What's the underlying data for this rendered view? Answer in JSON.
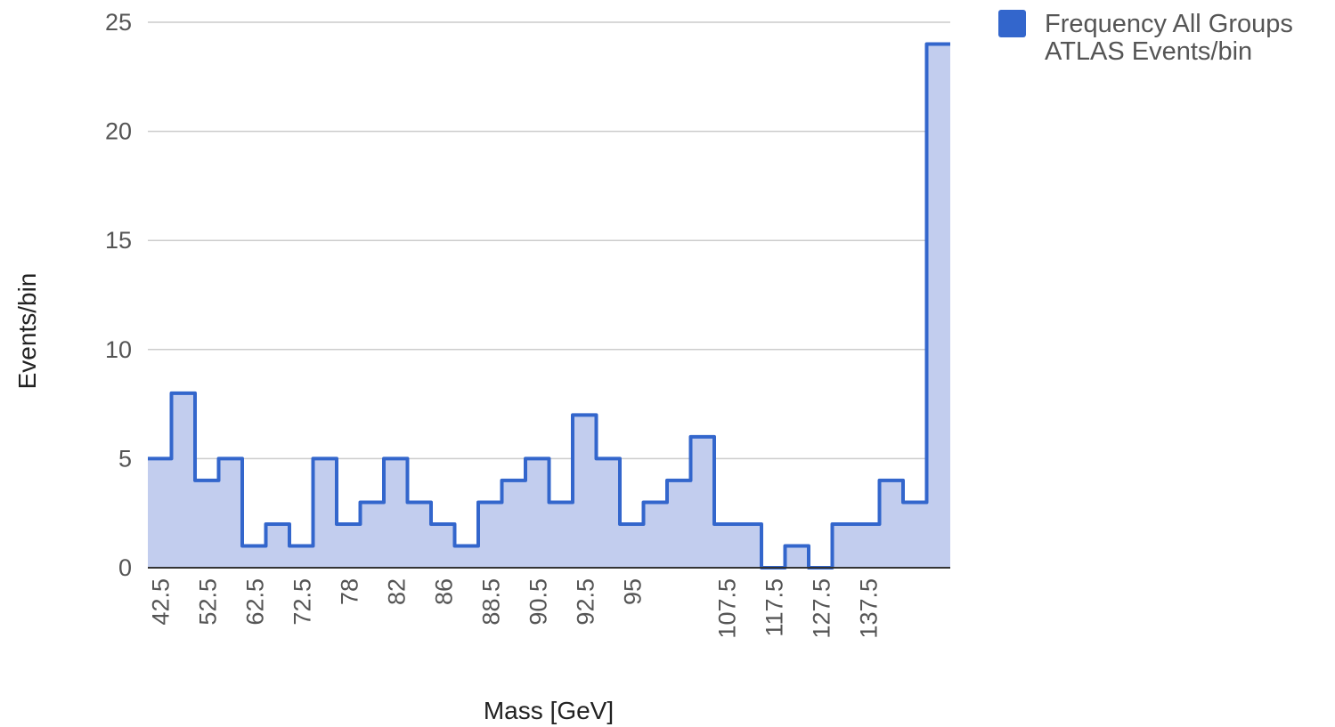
{
  "chart_data": {
    "type": "area",
    "title": "",
    "xlabel": "Mass [GeV]",
    "ylabel": "Events/bin",
    "ylim": [
      0,
      25
    ],
    "yticks": [
      "0",
      "5",
      "10",
      "15",
      "20",
      "25"
    ],
    "grid": true,
    "legend": {
      "position": "top-right",
      "lines": [
        "Frequency All Groups",
        "ATLAS Events/bin"
      ]
    },
    "x_tick_labels": [
      "42.5",
      "52.5",
      "62.5",
      "72.5",
      "78",
      "82",
      "86",
      "88.5",
      "90.5",
      "92.5",
      "95",
      "",
      "107.5",
      "117.5",
      "127.5",
      "137.5",
      ""
    ],
    "series": [
      {
        "name": "Frequency All Groups ATLAS Events/bin",
        "color": "#3366cc",
        "fill": "#c2cdee",
        "values": [
          5,
          8,
          4,
          5,
          1,
          2,
          1,
          5,
          2,
          3,
          5,
          3,
          2,
          1,
          3,
          4,
          5,
          3,
          7,
          5,
          2,
          3,
          4,
          6,
          2,
          2,
          0,
          1,
          0,
          2,
          2,
          4,
          3,
          24
        ]
      }
    ]
  }
}
